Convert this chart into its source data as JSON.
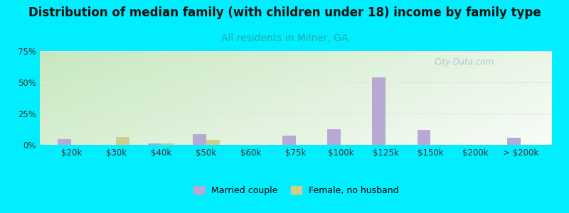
{
  "title": "Distribution of median family (with children under 18) income by family type",
  "subtitle": "All residents in Milner, GA",
  "categories": [
    "$20k",
    "$30k",
    "$40k",
    "$50k",
    "$60k",
    "$75k",
    "$100k",
    "$125k",
    "$150k",
    "$200k",
    "> $200k"
  ],
  "married_couple": [
    4.5,
    0,
    1.0,
    8.5,
    0,
    7.5,
    12.5,
    54.0,
    12.0,
    0,
    5.5
  ],
  "female_no_husband": [
    0,
    6.0,
    1.2,
    4.0,
    0,
    0,
    0,
    0,
    0,
    0,
    0
  ],
  "married_color": "#b8a9d4",
  "female_color": "#cece8a",
  "bar_width": 0.3,
  "ylim": [
    0,
    75
  ],
  "yticks": [
    0,
    25,
    50,
    75
  ],
  "ytick_labels": [
    "0%",
    "25%",
    "50%",
    "75%"
  ],
  "fig_bg": "#00eeff",
  "plot_bg_green": "#c8e8c0",
  "plot_bg_white": "#f0f8f0",
  "title_fontsize": 12,
  "subtitle_fontsize": 10,
  "subtitle_color": "#20aaaa",
  "title_color": "#111111",
  "watermark": "City-Data.com",
  "legend_married": "Married couple",
  "legend_female": "Female, no husband",
  "grid_color": "#e0e8e0"
}
